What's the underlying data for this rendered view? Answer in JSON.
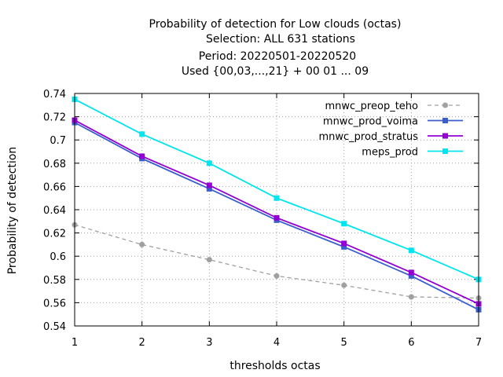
{
  "chart_data": {
    "type": "line",
    "title_lines": [
      "Probability of detection  for Low clouds (octas)",
      "Selection: ALL    631 stations",
      "Period: 20220501-20220520",
      "Used {00,03,...,21} + 00 01 ... 09"
    ],
    "xlabel": "thresholds octas",
    "ylabel": "Probability of detection",
    "x": [
      1,
      2,
      3,
      4,
      5,
      6,
      7
    ],
    "xlim": [
      1,
      7
    ],
    "ylim": [
      0.54,
      0.74
    ],
    "x_ticks": [
      "1",
      "2",
      "3",
      "4",
      "5",
      "6",
      "7"
    ],
    "y_ticks": [
      "0.54",
      "0.56",
      "0.58",
      "0.6",
      "0.62",
      "0.64",
      "0.66",
      "0.68",
      "0.7",
      "0.72",
      "0.74"
    ],
    "grid": true,
    "legend_position": "top-right",
    "series": [
      {
        "name": "mnwc_preop_teho",
        "color": "#a0a0a0",
        "dashed": true,
        "marker": "circle",
        "values": [
          0.627,
          0.61,
          0.597,
          0.583,
          0.575,
          0.565,
          0.564
        ]
      },
      {
        "name": "mnwc_prod_voima",
        "color": "#3a5fcd",
        "dashed": false,
        "marker": "square",
        "values": [
          0.715,
          0.684,
          0.658,
          0.631,
          0.608,
          0.583,
          0.554
        ]
      },
      {
        "name": "mnwc_prod_stratus",
        "color": "#9400d3",
        "dashed": false,
        "marker": "square",
        "values": [
          0.717,
          0.686,
          0.661,
          0.633,
          0.611,
          0.586,
          0.559
        ]
      },
      {
        "name": "meps_prod",
        "color": "#00e5ee",
        "dashed": false,
        "marker": "square",
        "values": [
          0.735,
          0.705,
          0.68,
          0.65,
          0.628,
          0.605,
          0.58
        ]
      }
    ]
  }
}
